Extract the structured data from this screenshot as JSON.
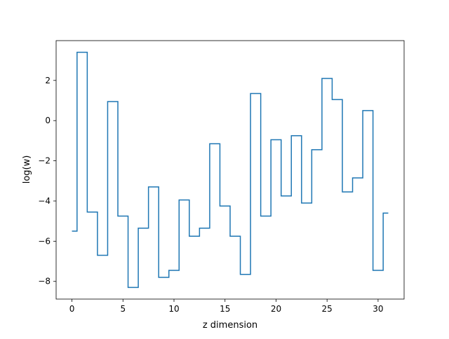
{
  "chart_data": {
    "type": "line",
    "drawstyle": "steps-mid",
    "xlabel": "z dimension",
    "ylabel": "log(w)",
    "xlim": [
      -1.55,
      32.55
    ],
    "ylim": [
      -8.88,
      3.98
    ],
    "xticks": [
      0,
      5,
      10,
      15,
      20,
      25,
      30
    ],
    "yticks": [
      -8,
      -6,
      -4,
      -2,
      0,
      2
    ],
    "xtick_labels": [
      "0",
      "5",
      "10",
      "15",
      "20",
      "25",
      "30"
    ],
    "ytick_labels": [
      "−8",
      "−6",
      "−4",
      "−2",
      "0",
      "2"
    ],
    "grid": false,
    "series": [
      {
        "color": "#1f77b4",
        "x": [
          0,
          1,
          2,
          3,
          4,
          5,
          6,
          7,
          8,
          9,
          10,
          11,
          12,
          13,
          14,
          15,
          16,
          17,
          18,
          19,
          20,
          21,
          22,
          23,
          24,
          25,
          26,
          27,
          28,
          29,
          30,
          31
        ],
        "values": [
          -5.5,
          3.4,
          -4.55,
          -6.7,
          0.95,
          -4.75,
          -8.3,
          -5.35,
          -3.3,
          -7.8,
          -7.45,
          -3.95,
          -5.75,
          -5.35,
          -1.15,
          -4.25,
          -5.75,
          -7.65,
          1.35,
          -4.75,
          -0.95,
          -3.75,
          -0.75,
          -4.1,
          -1.45,
          2.1,
          1.05,
          -3.55,
          -2.85,
          0.5,
          -7.45,
          -4.6
        ]
      }
    ]
  }
}
